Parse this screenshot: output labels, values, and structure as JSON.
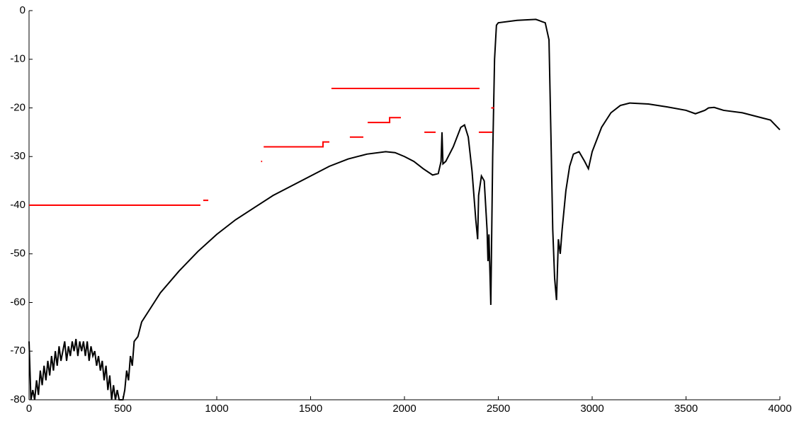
{
  "chart_data": {
    "type": "line",
    "xlim": [
      0,
      4000
    ],
    "xticks": [
      0,
      500,
      1000,
      1500,
      2000,
      2500,
      3000,
      3500,
      4000
    ],
    "ylim": [
      -80,
      0
    ],
    "yticks": [
      -80,
      -70,
      -60,
      -50,
      -40,
      -30,
      -20,
      -10,
      0
    ],
    "series": [
      {
        "color": "#000000",
        "x": [
          0,
          10,
          20,
          30,
          40,
          50,
          60,
          70,
          80,
          90,
          100,
          110,
          120,
          130,
          140,
          150,
          160,
          170,
          180,
          190,
          200,
          210,
          220,
          230,
          240,
          250,
          260,
          270,
          280,
          290,
          300,
          310,
          320,
          330,
          340,
          350,
          360,
          370,
          380,
          390,
          400,
          410,
          420,
          430,
          440,
          450,
          460,
          470,
          480,
          490,
          500,
          510,
          520,
          530,
          540,
          550,
          560,
          580,
          600,
          650,
          700,
          800,
          900,
          1000,
          1100,
          1200,
          1300,
          1400,
          1500,
          1600,
          1700,
          1800,
          1900,
          1950,
          2000,
          2050,
          2100,
          2150,
          2180,
          2195,
          2200,
          2205,
          2220,
          2260,
          2300,
          2320,
          2340,
          2360,
          2380,
          2390,
          2395,
          2410,
          2425,
          2440,
          2445,
          2450,
          2460,
          2470,
          2480,
          2490,
          2500,
          2600,
          2700,
          2750,
          2770,
          2780,
          2790,
          2800,
          2810,
          2820,
          2830,
          2840,
          2860,
          2880,
          2900,
          2930,
          2960,
          2980,
          3000,
          3050,
          3100,
          3150,
          3200,
          3300,
          3400,
          3500,
          3550,
          3600,
          3620,
          3650,
          3700,
          3800,
          3900,
          3950,
          4000
        ],
        "values": [
          -68,
          -80,
          -78,
          -80,
          -76,
          -79,
          -74,
          -77,
          -73,
          -76,
          -72,
          -75,
          -71,
          -74,
          -70,
          -73,
          -69,
          -72,
          -70,
          -68,
          -72,
          -69,
          -71,
          -68,
          -70,
          -67.5,
          -71,
          -68,
          -70,
          -68,
          -71,
          -68,
          -72,
          -69,
          -71,
          -70,
          -73,
          -71,
          -74,
          -72,
          -76,
          -73,
          -78,
          -75,
          -80,
          -77,
          -80,
          -78,
          -80,
          -80,
          -80,
          -78,
          -74,
          -76,
          -71,
          -73,
          -68,
          -67,
          -64,
          -61,
          -58,
          -53.5,
          -49.5,
          -46,
          -43,
          -40.5,
          -38,
          -36,
          -34,
          -32,
          -30.5,
          -29.5,
          -29,
          -29.2,
          -30,
          -31,
          -32.5,
          -33.8,
          -33.5,
          -31,
          -25,
          -31.5,
          -31,
          -28,
          -24,
          -23.5,
          -26,
          -33,
          -43,
          -47,
          -38,
          -34,
          -35,
          -45,
          -51.5,
          -46,
          -60.5,
          -30,
          -10,
          -3,
          -2.5,
          -2,
          -1.8,
          -2.5,
          -6,
          -25,
          -45,
          -55,
          -59.5,
          -47,
          -50,
          -45,
          -37,
          -32,
          -29.5,
          -29,
          -31,
          -32.5,
          -29,
          -24,
          -21,
          -19.5,
          -19,
          -19.2,
          -19.8,
          -20.5,
          -21.2,
          -20.5,
          -20,
          -19.9,
          -20.5,
          -21,
          -22,
          -22.5,
          -24.5
        ]
      },
      {
        "color": "#ff0000",
        "x": [
          0,
          913,
          null,
          928,
          955,
          null,
          1236,
          1242,
          null,
          1250,
          1566,
          1566,
          1600,
          null,
          1611,
          2400,
          null,
          1709,
          1781,
          null,
          1804,
          1921,
          1921,
          1981,
          null,
          2106,
          2166,
          null,
          2396,
          2468,
          null,
          2462,
          2478
        ],
        "values": [
          -40,
          -40,
          null,
          -39,
          -39,
          null,
          -31,
          -31,
          null,
          -28,
          -28,
          -27,
          -27,
          null,
          -16,
          -16,
          null,
          -26,
          -26,
          null,
          -23,
          -23,
          -22,
          -22,
          null,
          -25,
          -25,
          null,
          -25,
          -25,
          null,
          -20,
          -20
        ]
      }
    ]
  }
}
